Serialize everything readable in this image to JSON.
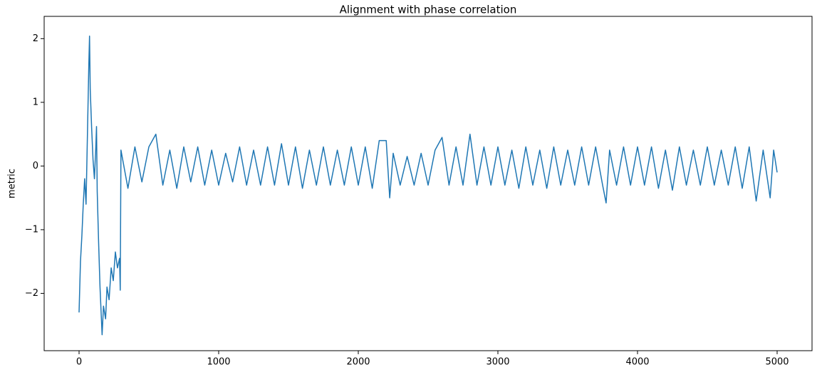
{
  "chart_data": {
    "type": "line",
    "title": "Alignment with phase correlation",
    "y_label": "metric",
    "x": [
      0,
      10,
      20,
      30,
      40,
      50,
      60,
      70,
      75,
      80,
      90,
      100,
      110,
      120,
      125,
      130,
      140,
      150,
      160,
      165,
      175,
      190,
      200,
      215,
      230,
      245,
      260,
      275,
      290,
      295,
      300,
      350,
      400,
      450,
      500,
      550,
      600,
      650,
      700,
      750,
      800,
      850,
      900,
      950,
      1000,
      1050,
      1100,
      1150,
      1200,
      1250,
      1300,
      1350,
      1400,
      1450,
      1500,
      1550,
      1600,
      1650,
      1700,
      1750,
      1800,
      1850,
      1900,
      1950,
      2000,
      2050,
      2100,
      2150,
      2200,
      2225,
      2250,
      2300,
      2350,
      2400,
      2450,
      2500,
      2550,
      2600,
      2650,
      2700,
      2750,
      2800,
      2850,
      2900,
      2950,
      3000,
      3050,
      3100,
      3150,
      3200,
      3250,
      3300,
      3350,
      3400,
      3450,
      3500,
      3550,
      3600,
      3650,
      3700,
      3750,
      3775,
      3800,
      3850,
      3900,
      3950,
      4000,
      4050,
      4100,
      4150,
      4200,
      4250,
      4300,
      4350,
      4400,
      4450,
      4500,
      4550,
      4600,
      4650,
      4700,
      4750,
      4800,
      4850,
      4900,
      4950,
      4975,
      5000
    ],
    "series": [
      {
        "name": "metric",
        "color": "#1f77b4",
        "values": [
          -2.3,
          -1.5,
          -1.1,
          -0.6,
          -0.2,
          -0.6,
          0.5,
          1.6,
          2.04,
          1.2,
          0.6,
          0.1,
          -0.2,
          0.3,
          0.62,
          -0.4,
          -1.2,
          -1.9,
          -2.4,
          -2.65,
          -2.2,
          -2.4,
          -1.9,
          -2.1,
          -1.6,
          -1.8,
          -1.35,
          -1.6,
          -1.45,
          -1.95,
          0.25,
          -0.35,
          0.3,
          -0.25,
          0.3,
          0.5,
          -0.3,
          0.25,
          -0.35,
          0.3,
          -0.25,
          0.3,
          -0.3,
          0.25,
          -0.3,
          0.2,
          -0.25,
          0.3,
          -0.3,
          0.25,
          -0.3,
          0.3,
          -0.3,
          0.35,
          -0.3,
          0.3,
          -0.35,
          0.25,
          -0.3,
          0.3,
          -0.3,
          0.25,
          -0.3,
          0.3,
          -0.3,
          0.3,
          -0.35,
          0.4,
          0.4,
          -0.5,
          0.2,
          -0.3,
          0.15,
          -0.3,
          0.2,
          -0.3,
          0.25,
          0.45,
          -0.3,
          0.3,
          -0.3,
          0.5,
          -0.3,
          0.3,
          -0.3,
          0.3,
          -0.3,
          0.25,
          -0.35,
          0.3,
          -0.3,
          0.25,
          -0.35,
          0.3,
          -0.3,
          0.25,
          -0.3,
          0.3,
          -0.3,
          0.3,
          -0.3,
          -0.58,
          0.25,
          -0.3,
          0.3,
          -0.3,
          0.3,
          -0.3,
          0.3,
          -0.35,
          0.25,
          -0.38,
          0.3,
          -0.3,
          0.25,
          -0.3,
          0.3,
          -0.3,
          0.25,
          -0.3,
          0.3,
          -0.35,
          0.3,
          -0.55,
          0.25,
          -0.5,
          0.25,
          -0.1
        ]
      }
    ],
    "xlim": [
      -250,
      5250
    ],
    "ylim": [
      -2.9,
      2.35
    ],
    "xticks": [
      0,
      1000,
      2000,
      3000,
      4000,
      5000
    ],
    "yticks": [
      {
        "value": -2,
        "label": "−2"
      },
      {
        "value": -1,
        "label": "−1"
      },
      0,
      1,
      2
    ]
  }
}
